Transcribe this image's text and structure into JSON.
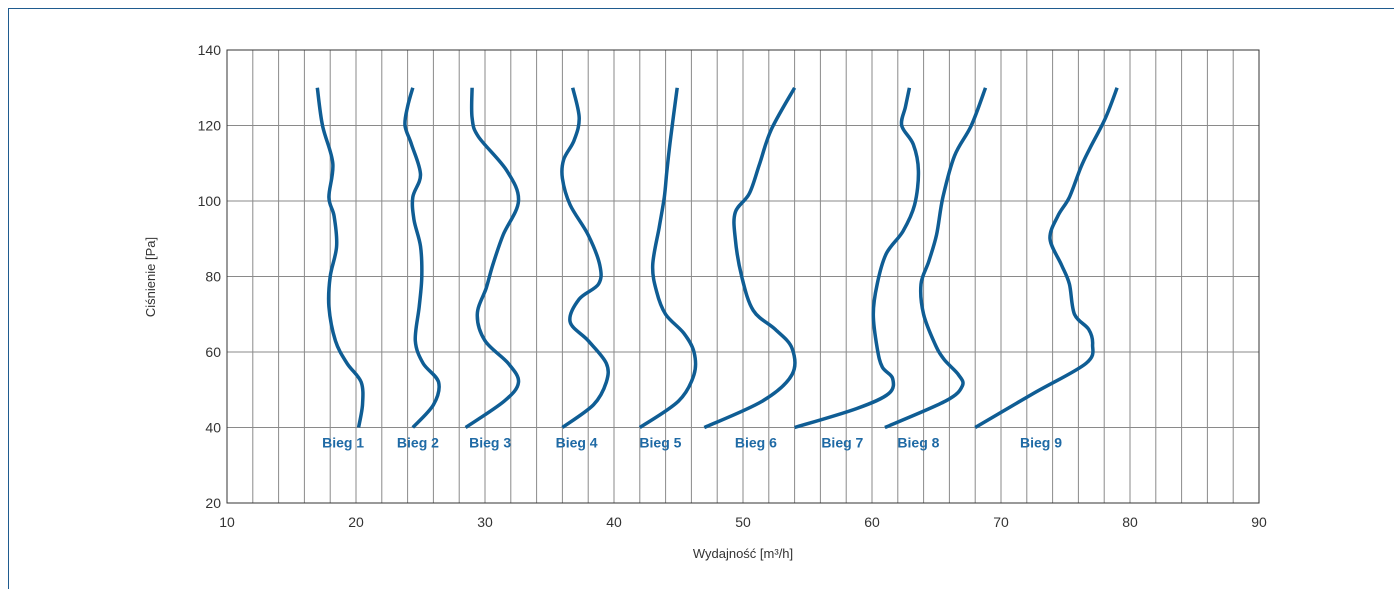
{
  "chart_data": {
    "type": "line",
    "title": "",
    "xlabel": "Wydajność [m³/h]",
    "ylabel": "Ciśnienie [Pa]",
    "xlim": [
      10,
      90
    ],
    "ylim": [
      20,
      140
    ],
    "xticks": [
      10,
      20,
      30,
      40,
      50,
      60,
      70,
      80,
      90
    ],
    "yticks": [
      20,
      40,
      60,
      80,
      100,
      120,
      140
    ],
    "grid": true,
    "legend": "none",
    "line_color": "#0f5d94",
    "label_color": "#1f6aa5",
    "series": [
      {
        "name": "Bieg 1",
        "points": [
          [
            20.2,
            40
          ],
          [
            20.5,
            46
          ],
          [
            20.4,
            52
          ],
          [
            19.3,
            57
          ],
          [
            18.4,
            63
          ],
          [
            17.9,
            72
          ],
          [
            18.0,
            80
          ],
          [
            18.5,
            88
          ],
          [
            18.3,
            96
          ],
          [
            17.9,
            101
          ],
          [
            18.2,
            110
          ],
          [
            17.4,
            120
          ],
          [
            17.0,
            130
          ]
        ]
      },
      {
        "name": "Bieg 2",
        "points": [
          [
            24.4,
            40
          ],
          [
            26.0,
            46
          ],
          [
            26.4,
            52
          ],
          [
            25.2,
            57
          ],
          [
            24.6,
            63
          ],
          [
            24.9,
            72
          ],
          [
            25.1,
            80
          ],
          [
            25.0,
            88
          ],
          [
            24.5,
            95
          ],
          [
            24.4,
            101
          ],
          [
            25.0,
            107
          ],
          [
            24.3,
            115
          ],
          [
            23.8,
            120
          ],
          [
            24.0,
            125
          ],
          [
            24.4,
            130
          ]
        ]
      },
      {
        "name": "Bieg 3",
        "points": [
          [
            28.5,
            40
          ],
          [
            31.5,
            47
          ],
          [
            32.6,
            52
          ],
          [
            31.8,
            57
          ],
          [
            30.0,
            63
          ],
          [
            29.4,
            70
          ],
          [
            30.1,
            77
          ],
          [
            30.6,
            83
          ],
          [
            31.4,
            91
          ],
          [
            32.6,
            100
          ],
          [
            31.7,
            108
          ],
          [
            29.5,
            117
          ],
          [
            29.0,
            122
          ],
          [
            29.0,
            130
          ]
        ]
      },
      {
        "name": "Bieg 4",
        "points": [
          [
            36.0,
            40
          ],
          [
            38.4,
            46
          ],
          [
            39.4,
            52
          ],
          [
            39.4,
            57
          ],
          [
            38.0,
            63
          ],
          [
            36.6,
            68
          ],
          [
            37.3,
            74
          ],
          [
            38.8,
            78
          ],
          [
            38.9,
            83
          ],
          [
            38.0,
            91
          ],
          [
            36.6,
            99
          ],
          [
            36.0,
            106
          ],
          [
            36.1,
            111
          ],
          [
            36.9,
            116
          ],
          [
            37.3,
            122
          ],
          [
            36.8,
            130
          ]
        ]
      },
      {
        "name": "Bieg 5",
        "points": [
          [
            42.0,
            40
          ],
          [
            45.0,
            47
          ],
          [
            46.2,
            54
          ],
          [
            46.2,
            60
          ],
          [
            45.4,
            65
          ],
          [
            44.0,
            70
          ],
          [
            43.3,
            76
          ],
          [
            43.0,
            83
          ],
          [
            43.5,
            93
          ],
          [
            43.9,
            101
          ],
          [
            44.1,
            108
          ],
          [
            44.4,
            117
          ],
          [
            44.9,
            130
          ]
        ]
      },
      {
        "name": "Bieg 6",
        "points": [
          [
            47.0,
            40
          ],
          [
            51.5,
            47
          ],
          [
            53.8,
            54
          ],
          [
            53.8,
            61
          ],
          [
            52.5,
            66
          ],
          [
            50.8,
            71
          ],
          [
            49.9,
            80
          ],
          [
            49.4,
            90
          ],
          [
            49.4,
            97
          ],
          [
            50.5,
            102
          ],
          [
            51.3,
            110
          ],
          [
            52.2,
            119
          ],
          [
            54.0,
            130
          ]
        ]
      },
      {
        "name": "Bieg 7",
        "points": [
          [
            54.0,
            40
          ],
          [
            58.8,
            45
          ],
          [
            61.3,
            49
          ],
          [
            61.6,
            53
          ],
          [
            60.8,
            56
          ],
          [
            60.4,
            61
          ],
          [
            60.1,
            70
          ],
          [
            60.4,
            78
          ],
          [
            61.1,
            86
          ],
          [
            62.4,
            92
          ],
          [
            63.3,
            99
          ],
          [
            63.6,
            108
          ],
          [
            63.2,
            115
          ],
          [
            62.3,
            120
          ],
          [
            62.6,
            125
          ],
          [
            62.9,
            130
          ]
        ]
      },
      {
        "name": "Bieg 8",
        "points": [
          [
            61.0,
            40
          ],
          [
            65.7,
            47
          ],
          [
            67.0,
            51
          ],
          [
            66.7,
            54
          ],
          [
            65.6,
            58
          ],
          [
            64.9,
            62
          ],
          [
            64.0,
            70
          ],
          [
            63.8,
            78
          ],
          [
            64.4,
            84
          ],
          [
            65.0,
            91
          ],
          [
            65.5,
            101
          ],
          [
            66.4,
            112
          ],
          [
            67.7,
            120
          ],
          [
            68.8,
            130
          ]
        ]
      },
      {
        "name": "Bieg 9",
        "points": [
          [
            68.0,
            40
          ],
          [
            72.5,
            49
          ],
          [
            76.6,
            57
          ],
          [
            77.1,
            62
          ],
          [
            76.8,
            66
          ],
          [
            75.7,
            70
          ],
          [
            75.3,
            78
          ],
          [
            74.7,
            83
          ],
          [
            73.8,
            90
          ],
          [
            74.4,
            96
          ],
          [
            75.3,
            101
          ],
          [
            76.2,
            109
          ],
          [
            76.9,
            114
          ],
          [
            78.1,
            122
          ],
          [
            79.0,
            130
          ]
        ]
      }
    ],
    "series_labels": [
      {
        "text": "Bieg 1",
        "x": 19.0,
        "y": 36
      },
      {
        "text": "Bieg 2",
        "x": 24.8,
        "y": 36
      },
      {
        "text": "Bieg 3",
        "x": 30.4,
        "y": 36
      },
      {
        "text": "Bieg 4",
        "x": 37.1,
        "y": 36
      },
      {
        "text": "Bieg 5",
        "x": 43.6,
        "y": 36
      },
      {
        "text": "Bieg 6",
        "x": 51.0,
        "y": 36
      },
      {
        "text": "Bieg 7",
        "x": 57.7,
        "y": 36
      },
      {
        "text": "Bieg 8",
        "x": 63.6,
        "y": 36
      },
      {
        "text": "Bieg 9",
        "x": 73.1,
        "y": 36
      }
    ]
  }
}
